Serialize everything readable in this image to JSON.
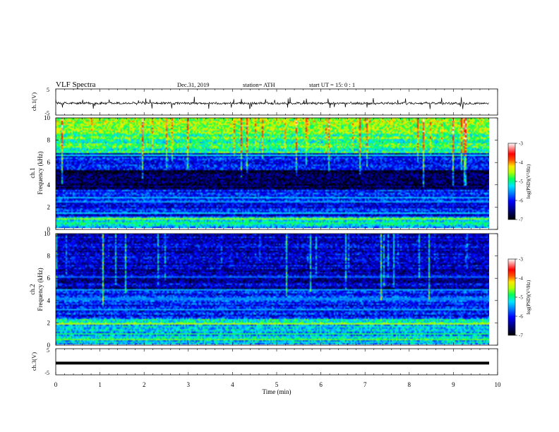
{
  "header": {
    "title": "VLF  Spectra",
    "date": "Dec.31, 2019",
    "station": "station= ATH",
    "start": "start  UT  =    15: 0  : 1"
  },
  "colors": {
    "spectrum_scale": [
      "#000000",
      "#00007a",
      "#0000ff",
      "#0078ff",
      "#00e6ff",
      "#00ff5a",
      "#b4ff00",
      "#ffe600",
      "#ff5000",
      "#ff0000",
      "#ffffff"
    ]
  },
  "chart_data": [
    {
      "type": "line",
      "name": "waveform-ch1",
      "ylabel": "ch.1(V)",
      "ylim": [
        -5,
        5
      ],
      "yticks": [
        "5",
        "-5"
      ],
      "xlim": [
        0,
        10
      ],
      "baseline": -0.5,
      "amplitude_range": [
        -1.5,
        0.8
      ]
    },
    {
      "type": "heatmap",
      "name": "spectrogram-ch1",
      "side_label": "ch.1",
      "ylabel": "Frequency  (kHz)",
      "ylim": [
        0,
        10
      ],
      "yticks": [
        "0",
        "2",
        "4",
        "6",
        "8",
        "10"
      ],
      "xlim": [
        0,
        10
      ],
      "colorbar": {
        "label": "log(PSD)(V²/Hz)",
        "ticks": [
          "-3",
          "-4",
          "-5",
          "-6",
          "-7"
        ],
        "range": [
          -7,
          -3
        ]
      },
      "bands": [
        {
          "f": 0.35,
          "v": -4.9
        },
        {
          "f": 0.8,
          "v": -4.6
        },
        {
          "f": 1.3,
          "v": -5.3
        },
        {
          "f": 2.3,
          "v": -5.5
        },
        {
          "f": 2.7,
          "v": -5.4
        },
        {
          "f": 6.6,
          "v": -5.2
        }
      ]
    },
    {
      "type": "heatmap",
      "name": "spectrogram-ch2",
      "side_label": "ch.2",
      "ylabel": "Frequency  (kHz)",
      "ylim": [
        0,
        10
      ],
      "yticks": [
        "0",
        "2",
        "4",
        "6",
        "8",
        "10"
      ],
      "xlim": [
        0,
        10
      ],
      "colorbar": {
        "label": "log(PSD)(V²/Hz)",
        "ticks": [
          "-3",
          "-4",
          "-5",
          "-6",
          "-7"
        ],
        "range": [
          -7,
          -3
        ]
      },
      "bands": [
        {
          "f": 0.4,
          "v": -4.7
        },
        {
          "f": 0.9,
          "v": -4.9
        },
        {
          "f": 1.8,
          "v": -4.5
        },
        {
          "f": 3.1,
          "v": -5.5
        },
        {
          "f": 4.1,
          "v": -5.6
        },
        {
          "f": 4.9,
          "v": -5.5
        },
        {
          "f": 6.1,
          "v": -5.7
        }
      ]
    },
    {
      "type": "line",
      "name": "waveform-ch3",
      "ylabel": "ch.3(V)",
      "ylim": [
        -5,
        5
      ],
      "yticks": [
        "5",
        "-5"
      ],
      "xlim": [
        0,
        10
      ],
      "baseline": -0.5
    }
  ],
  "x_axis": {
    "label": "Time  (min)",
    "ticks": [
      "0",
      "1",
      "2",
      "3",
      "4",
      "5",
      "6",
      "7",
      "8",
      "9",
      "10"
    ]
  }
}
